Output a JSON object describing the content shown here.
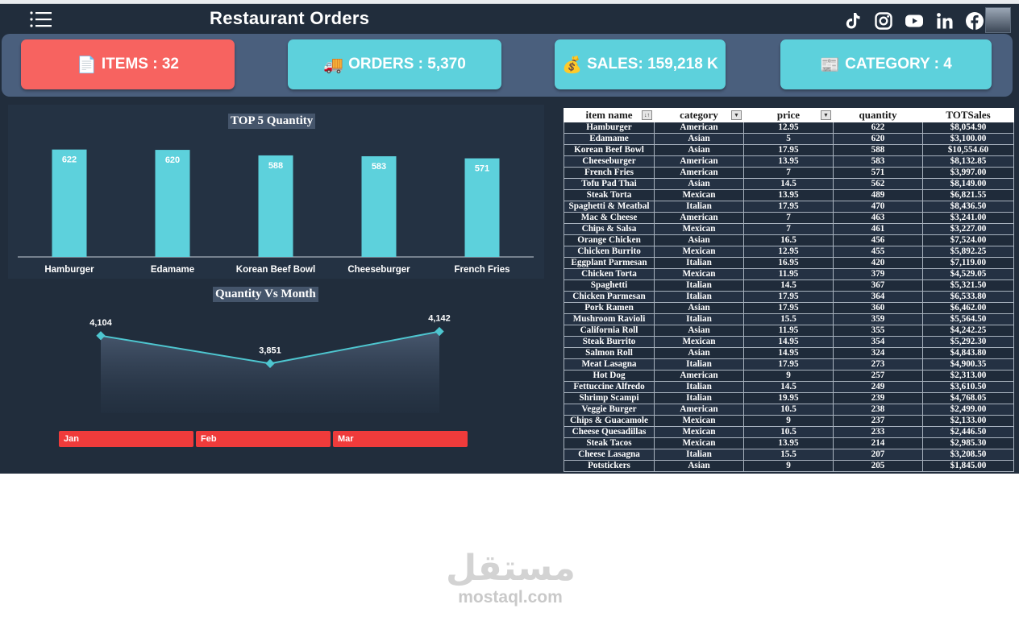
{
  "header": {
    "title": "Restaurant Orders"
  },
  "social": [
    "tiktok-icon",
    "instagram-icon",
    "youtube-icon",
    "linkedin-icon",
    "facebook-icon"
  ],
  "kpis": [
    {
      "icon": "📄",
      "text": "ITEMS : 32",
      "color": "#f76360"
    },
    {
      "icon": "🚚",
      "text": "ORDERS : 5,370",
      "color": "#5dd1dc"
    },
    {
      "icon": "💰",
      "text": "SALES: 159,218 K",
      "color": "#5dd1dc"
    },
    {
      "icon": "📰",
      "text": "CATEGORY : 4",
      "color": "#5dd1dc"
    }
  ],
  "chart_data": [
    {
      "type": "bar",
      "title": "TOP 5 Quantity",
      "categories": [
        "Hamburger",
        "Edamame",
        "Korean Beef Bowl",
        "Cheeseburger",
        "French Fries"
      ],
      "values": [
        622,
        620,
        588,
        583,
        571
      ],
      "data_labels": [
        "622",
        "620",
        "588",
        "583",
        "571"
      ],
      "color": "#5dd1dc"
    },
    {
      "type": "area",
      "title": "Quantity Vs Month",
      "categories": [
        "Jan",
        "Feb",
        "Mar"
      ],
      "values": [
        4104,
        3851,
        4142
      ],
      "data_labels": [
        "4,104",
        "3,851",
        "4,142"
      ],
      "color": "#4ec6d0"
    }
  ],
  "slicer": {
    "items": [
      "Jan",
      "Feb",
      "Mar"
    ]
  },
  "table": {
    "columns": [
      "item name",
      "category",
      "price",
      "quantity",
      "TOTSales"
    ],
    "rows": [
      [
        "Hamburger",
        "American",
        "12.95",
        "622",
        "$8,054.90"
      ],
      [
        "Edamame",
        "Asian",
        "5",
        "620",
        "$3,100.00"
      ],
      [
        "Korean Beef Bowl",
        "Asian",
        "17.95",
        "588",
        "$10,554.60"
      ],
      [
        "Cheeseburger",
        "American",
        "13.95",
        "583",
        "$8,132.85"
      ],
      [
        "French Fries",
        "American",
        "7",
        "571",
        "$3,997.00"
      ],
      [
        "Tofu Pad Thai",
        "Asian",
        "14.5",
        "562",
        "$8,149.00"
      ],
      [
        "Steak Torta",
        "Mexican",
        "13.95",
        "489",
        "$6,821.55"
      ],
      [
        "Spaghetti & Meatbal",
        "Italian",
        "17.95",
        "470",
        "$8,436.50"
      ],
      [
        "Mac & Cheese",
        "American",
        "7",
        "463",
        "$3,241.00"
      ],
      [
        "Chips & Salsa",
        "Mexican",
        "7",
        "461",
        "$3,227.00"
      ],
      [
        "Orange Chicken",
        "Asian",
        "16.5",
        "456",
        "$7,524.00"
      ],
      [
        "Chicken Burrito",
        "Mexican",
        "12.95",
        "455",
        "$5,892.25"
      ],
      [
        "Eggplant Parmesan",
        "Italian",
        "16.95",
        "420",
        "$7,119.00"
      ],
      [
        "Chicken Torta",
        "Mexican",
        "11.95",
        "379",
        "$4,529.05"
      ],
      [
        "Spaghetti",
        "Italian",
        "14.5",
        "367",
        "$5,321.50"
      ],
      [
        "Chicken Parmesan",
        "Italian",
        "17.95",
        "364",
        "$6,533.80"
      ],
      [
        "Pork Ramen",
        "Asian",
        "17.95",
        "360",
        "$6,462.00"
      ],
      [
        "Mushroom Ravioli",
        "Italian",
        "15.5",
        "359",
        "$5,564.50"
      ],
      [
        "California Roll",
        "Asian",
        "11.95",
        "355",
        "$4,242.25"
      ],
      [
        "Steak Burrito",
        "Mexican",
        "14.95",
        "354",
        "$5,292.30"
      ],
      [
        "Salmon Roll",
        "Asian",
        "14.95",
        "324",
        "$4,843.80"
      ],
      [
        "Meat Lasagna",
        "Italian",
        "17.95",
        "273",
        "$4,900.35"
      ],
      [
        "Hot Dog",
        "American",
        "9",
        "257",
        "$2,313.00"
      ],
      [
        "Fettuccine Alfredo",
        "Italian",
        "14.5",
        "249",
        "$3,610.50"
      ],
      [
        "Shrimp Scampi",
        "Italian",
        "19.95",
        "239",
        "$4,768.05"
      ],
      [
        "Veggie Burger",
        "American",
        "10.5",
        "238",
        "$2,499.00"
      ],
      [
        "Chips & Guacamole",
        "Mexican",
        "9",
        "237",
        "$2,133.00"
      ],
      [
        "Cheese Quesadillas",
        "Mexican",
        "10.5",
        "233",
        "$2,446.50"
      ],
      [
        "Steak Tacos",
        "Mexican",
        "13.95",
        "214",
        "$2,985.30"
      ],
      [
        "Cheese Lasagna",
        "Italian",
        "15.5",
        "207",
        "$3,208.50"
      ],
      [
        "Potstickers",
        "Asian",
        "9",
        "205",
        "$1,845.00"
      ]
    ]
  },
  "watermark": {
    "logo": "مستقل",
    "site": "mostaql.com"
  }
}
